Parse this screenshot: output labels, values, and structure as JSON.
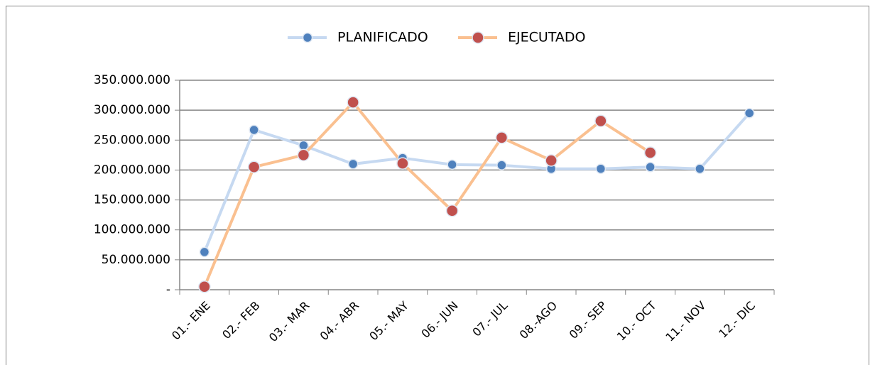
{
  "chart_data": {
    "type": "line",
    "categories": [
      "01.- ENE",
      "02.- FEB",
      "03.- MAR",
      "04.- ABR",
      "05.- MAY",
      "06.- JUN",
      "07.- JUL",
      "08.-AGO",
      "09.- SEP",
      "10.- OCT",
      "11.- NOV",
      "12.- DIC"
    ],
    "series": [
      {
        "name": "PLANIFICADO",
        "color": "#4f81bd",
        "line_color": "#c6d9f1",
        "values": [
          63000000,
          267000000,
          241000000,
          210000000,
          220000000,
          209000000,
          208000000,
          202000000,
          202000000,
          205000000,
          202000000,
          295000000
        ]
      },
      {
        "name": "EJECUTADO",
        "color": "#c0504d",
        "line_color": "#fac090",
        "values": [
          5000000,
          205000000,
          225000000,
          313000000,
          211000000,
          132000000,
          254000000,
          216000000,
          282000000,
          229000000,
          null,
          null
        ]
      }
    ],
    "ylim": [
      0,
      350000000
    ],
    "yticks": [
      {
        "value": 0,
        "label": "-"
      },
      {
        "value": 50000000,
        "label": "50.000.000"
      },
      {
        "value": 100000000,
        "label": "100.000.000"
      },
      {
        "value": 150000000,
        "label": "150.000.000"
      },
      {
        "value": 200000000,
        "label": "200.000.000"
      },
      {
        "value": 250000000,
        "label": "250.000.000"
      },
      {
        "value": 300000000,
        "label": "300.000.000"
      },
      {
        "value": 350000000,
        "label": "350.000.000"
      }
    ],
    "grid": true,
    "legend": "top"
  }
}
